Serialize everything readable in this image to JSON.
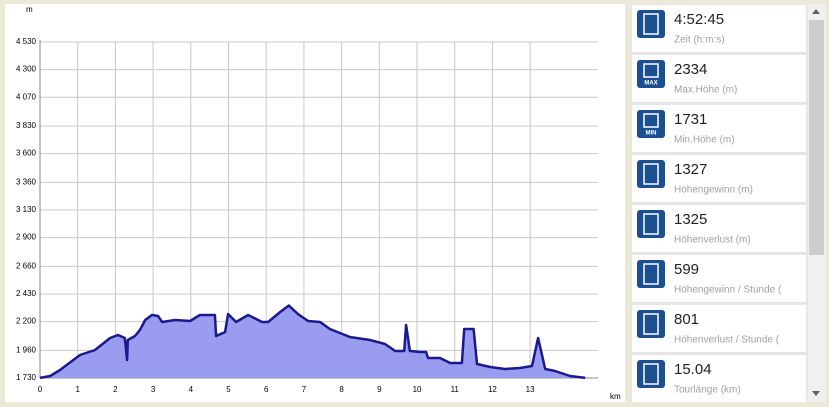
{
  "chart_data": {
    "type": "area",
    "y_label": "m",
    "x_label": "km",
    "color": "#1a1a8c",
    "fill": "#9a9cf0",
    "xlim": [
      0,
      14.8
    ],
    "ylim": [
      1730,
      4530
    ],
    "xticks": [
      0,
      1,
      2,
      3,
      4,
      5,
      6,
      7,
      8,
      9,
      10,
      11,
      12,
      13
    ],
    "yticks": [
      {
        "value": 1730,
        "label": "1 730"
      },
      {
        "value": 1960,
        "label": "1 960"
      },
      {
        "value": 2200,
        "label": "2 200"
      },
      {
        "value": 2430,
        "label": "2 430"
      },
      {
        "value": 2660,
        "label": "2 660"
      },
      {
        "value": 2900,
        "label": "2 900"
      },
      {
        "value": 3130,
        "label": "3 130"
      },
      {
        "value": 3360,
        "label": "3 360"
      },
      {
        "value": 3600,
        "label": "3 600"
      },
      {
        "value": 3830,
        "label": "3 830"
      },
      {
        "value": 4070,
        "label": "4 070"
      },
      {
        "value": 4300,
        "label": "4 300"
      },
      {
        "value": 4530,
        "label": "4 530"
      }
    ],
    "grid": true,
    "x": [
      0,
      0.27,
      0.53,
      1.06,
      1.46,
      1.86,
      2.07,
      2.25,
      2.31,
      2.33,
      2.52,
      2.65,
      2.79,
      2.97,
      3.13,
      3.24,
      3.58,
      3.98,
      4.24,
      4.64,
      4.67,
      4.91,
      4.99,
      5.2,
      5.52,
      5.89,
      6.05,
      6.37,
      6.6,
      6.84,
      7.11,
      7.43,
      7.69,
      8.22,
      8.75,
      9.15,
      9.42,
      9.66,
      9.71,
      9.81,
      10.08,
      10.24,
      10.29,
      10.61,
      10.88,
      11.19,
      11.25,
      11.5,
      11.59,
      11.94,
      12.33,
      12.73,
      13.05,
      13.21,
      13.4,
      13.66,
      14.06,
      14.46
    ],
    "values": [
      1731,
      1747,
      1797,
      1922,
      1963,
      2063,
      2088,
      2063,
      1880,
      2047,
      2080,
      2130,
      2213,
      2255,
      2247,
      2197,
      2213,
      2205,
      2255,
      2255,
      2080,
      2113,
      2263,
      2197,
      2255,
      2197,
      2197,
      2280,
      2334,
      2263,
      2205,
      2197,
      2138,
      2072,
      2047,
      2013,
      1955,
      1955,
      2172,
      1955,
      1947,
      1947,
      1897,
      1897,
      1855,
      1855,
      2138,
      2138,
      1847,
      1822,
      1805,
      1813,
      1830,
      2063,
      1805,
      1788,
      1747,
      1731
    ]
  },
  "stats": [
    {
      "value": "4:52:45",
      "label": "Zeit (h:m:s)"
    },
    {
      "value": "2334",
      "label": "Max.Höhe (m)",
      "icon_text": "MAX"
    },
    {
      "value": "1731",
      "label": "Min.Höhe (m)",
      "icon_text": "MIN"
    },
    {
      "value": "1327",
      "label": "Höhengewinn (m)"
    },
    {
      "value": "1325",
      "label": "Höhenverlust (m)"
    },
    {
      "value": "599",
      "label": "Höhengewinn  /  Stunde ("
    },
    {
      "value": "801",
      "label": "Höhenverlust  /  Stunde ("
    },
    {
      "value": "15.04",
      "label": "Tourlänge (km)"
    }
  ]
}
